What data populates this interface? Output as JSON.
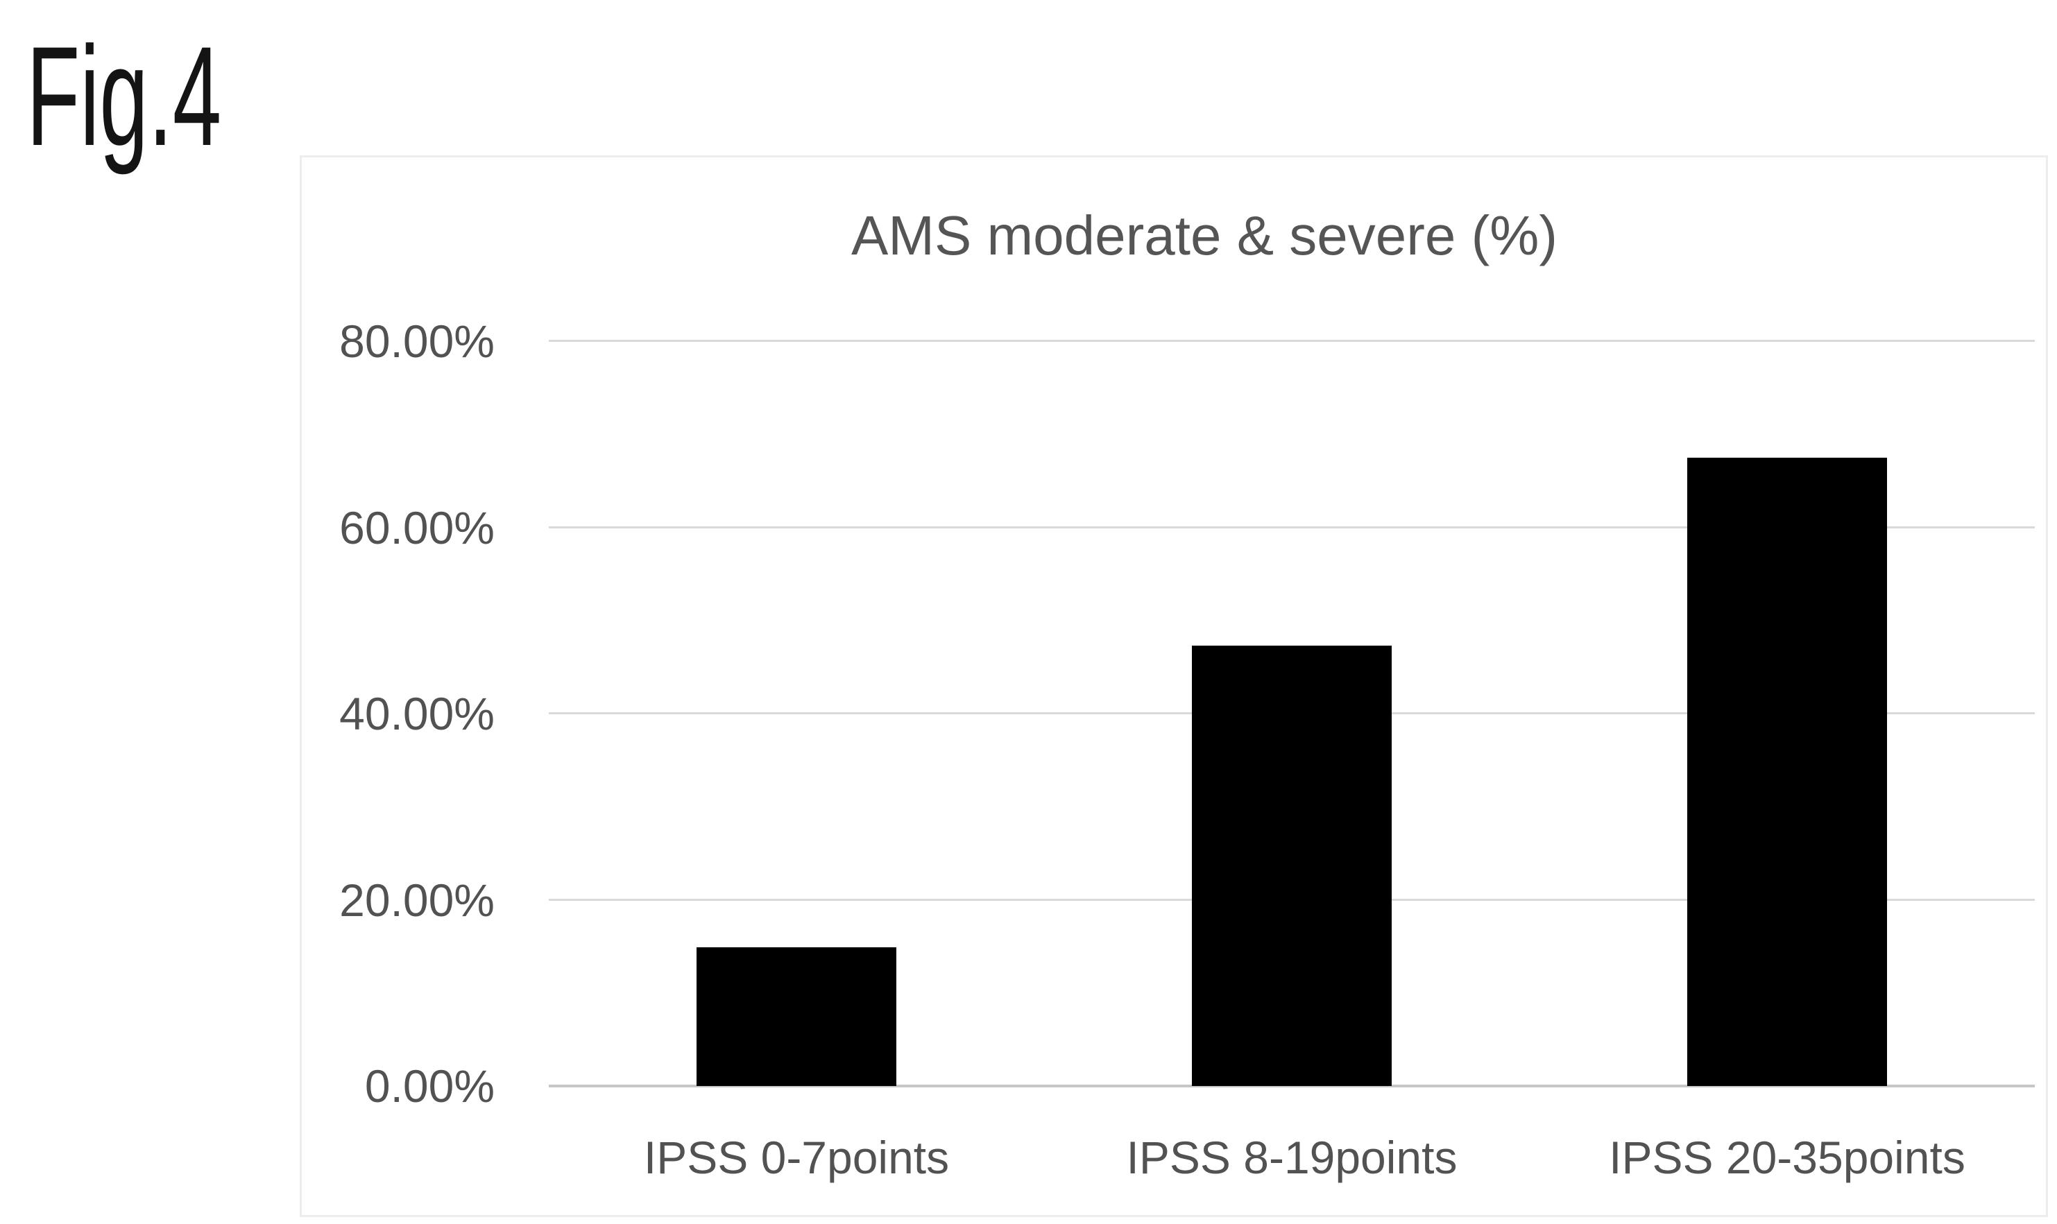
{
  "figure_label": "Fig.4",
  "chart_data": {
    "type": "bar",
    "title": "AMS moderate & severe (%)",
    "categories": [
      "IPSS 0-7points",
      "IPSS 8-19points",
      "IPSS 20-35points"
    ],
    "values": [
      14.9,
      47.3,
      67.5
    ],
    "unit": "%",
    "xlabel": "",
    "ylabel": "",
    "ylim": [
      0,
      80
    ],
    "y_ticks": [
      0,
      20,
      40,
      60,
      80
    ],
    "y_tick_labels": [
      "0.00%",
      "20.00%",
      "40.00%",
      "60.00%",
      "80.00%"
    ],
    "grid": "horizontal",
    "legend_position": "none",
    "colors": {
      "bar": "#000000",
      "gridline": "#d9d9d9",
      "axis_line": "#c6c6c6",
      "tick_label_text": "#525252",
      "title_text": "#555555",
      "chart_border": "#ededed",
      "figure_label_text": "#141414",
      "background": "#ffffff"
    }
  }
}
